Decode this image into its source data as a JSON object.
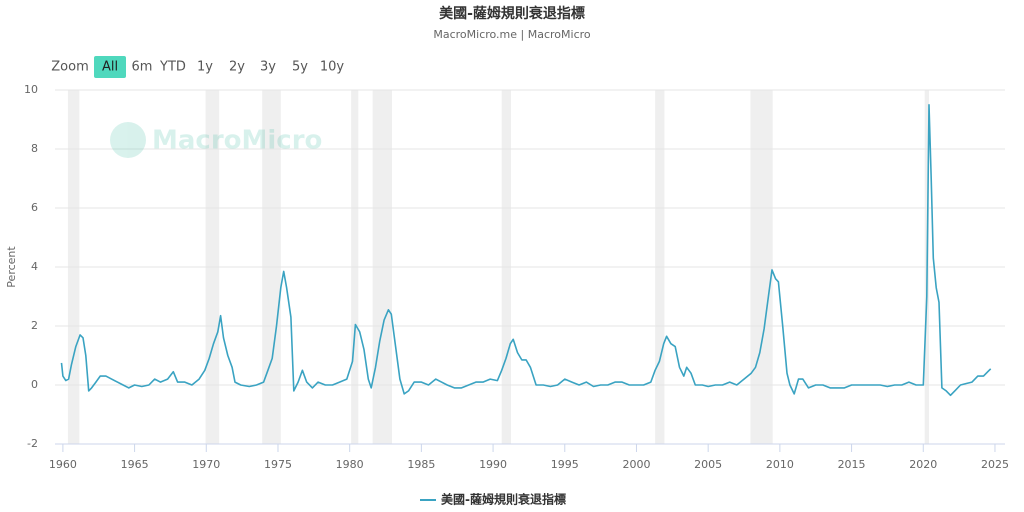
{
  "chart_data": {
    "type": "line",
    "title": "美國-薩姆規則衰退指標",
    "subtitle": "MacroMicro.me | MacroMicro",
    "watermark": "MacroMicro",
    "range_selector": {
      "label": "Zoom",
      "buttons": [
        "All",
        "6m",
        "YTD",
        "1y",
        "2y",
        "3y",
        "5y",
        "10y"
      ],
      "selected": 0
    },
    "y_label": "Percent",
    "xlim": [
      1959.45,
      2025.7
    ],
    "xticks": [
      1960,
      1965,
      1970,
      1975,
      1980,
      1985,
      1990,
      1995,
      2000,
      2005,
      2010,
      2015,
      2020,
      2025
    ],
    "ylim": [
      -2,
      10
    ],
    "yticks": [
      -2,
      0,
      2,
      4,
      6,
      8,
      10
    ],
    "grid": true,
    "recessions": [
      [
        1960.35,
        1961.15
      ],
      [
        1969.95,
        1970.9
      ],
      [
        1973.9,
        1975.2
      ],
      [
        1980.1,
        1980.6
      ],
      [
        1981.6,
        1982.95
      ],
      [
        1990.6,
        1991.25
      ],
      [
        2001.3,
        2001.95
      ],
      [
        2007.95,
        2009.5
      ],
      [
        2020.1,
        2020.4
      ]
    ],
    "x": [
      1959.9,
      1960.0,
      1960.2,
      1960.4,
      1960.6,
      1960.9,
      1961.2,
      1961.4,
      1961.6,
      1961.8,
      1962.0,
      1962.3,
      1962.6,
      1963.0,
      1963.4,
      1963.8,
      1964.2,
      1964.6,
      1965.0,
      1965.5,
      1966.0,
      1966.4,
      1966.8,
      1967.3,
      1967.7,
      1968.0,
      1968.5,
      1969.0,
      1969.5,
      1969.9,
      1970.2,
      1970.5,
      1970.8,
      1971.0,
      1971.2,
      1971.5,
      1971.8,
      1972.0,
      1972.4,
      1973.0,
      1973.5,
      1974.0,
      1974.3,
      1974.6,
      1974.9,
      1975.2,
      1975.4,
      1975.6,
      1975.9,
      1976.1,
      1976.4,
      1976.7,
      1977.0,
      1977.4,
      1977.8,
      1978.3,
      1978.8,
      1979.3,
      1979.8,
      1980.2,
      1980.4,
      1980.7,
      1981.0,
      1981.3,
      1981.5,
      1981.8,
      1982.1,
      1982.4,
      1982.7,
      1982.9,
      1983.2,
      1983.5,
      1983.8,
      1984.1,
      1984.5,
      1985.0,
      1985.5,
      1986.0,
      1986.4,
      1986.8,
      1987.3,
      1987.8,
      1988.3,
      1988.8,
      1989.3,
      1989.8,
      1990.3,
      1990.6,
      1990.9,
      1991.2,
      1991.4,
      1991.7,
      1992.0,
      1992.3,
      1992.6,
      1993.0,
      1993.5,
      1994.0,
      1994.5,
      1995.0,
      1995.5,
      1996.0,
      1996.5,
      1997.0,
      1997.5,
      1998.0,
      1998.5,
      1999.0,
      1999.5,
      2000.0,
      2000.5,
      2001.0,
      2001.3,
      2001.6,
      2001.9,
      2002.1,
      2002.4,
      2002.7,
      2003.0,
      2003.3,
      2003.5,
      2003.8,
      2004.1,
      2004.6,
      2005.0,
      2005.5,
      2006.0,
      2006.5,
      2007.0,
      2007.5,
      2008.0,
      2008.3,
      2008.6,
      2008.9,
      2009.2,
      2009.45,
      2009.7,
      2009.9,
      2010.2,
      2010.5,
      2010.7,
      2011.0,
      2011.3,
      2011.6,
      2012.0,
      2012.5,
      2013.0,
      2013.5,
      2014.0,
      2014.5,
      2015.0,
      2015.5,
      2016.0,
      2016.5,
      2017.0,
      2017.5,
      2018.0,
      2018.5,
      2019.0,
      2019.5,
      2020.0,
      2020.25,
      2020.4,
      2020.55,
      2020.7,
      2020.9,
      2021.1,
      2021.3,
      2021.6,
      2021.9,
      2022.2,
      2022.6,
      2023.0,
      2023.4,
      2023.8,
      2024.2,
      2024.5,
      2024.7
    ],
    "series": [
      {
        "name": "美國-薩姆規則衰退指標",
        "color": "#3aa3c2",
        "values": [
          0.75,
          0.3,
          0.15,
          0.2,
          0.7,
          1.3,
          1.7,
          1.6,
          1.0,
          -0.2,
          -0.1,
          0.1,
          0.3,
          0.3,
          0.2,
          0.1,
          0.0,
          -0.1,
          0.0,
          -0.05,
          0.0,
          0.2,
          0.1,
          0.2,
          0.45,
          0.1,
          0.1,
          0.0,
          0.2,
          0.5,
          0.9,
          1.4,
          1.8,
          2.35,
          1.6,
          1.0,
          0.6,
          0.1,
          0.0,
          -0.05,
          0.0,
          0.1,
          0.5,
          0.9,
          2.0,
          3.3,
          3.85,
          3.3,
          2.3,
          -0.2,
          0.1,
          0.5,
          0.1,
          -0.1,
          0.1,
          0.0,
          0.0,
          0.1,
          0.2,
          0.8,
          2.05,
          1.8,
          1.2,
          0.2,
          -0.1,
          0.6,
          1.5,
          2.2,
          2.55,
          2.4,
          1.3,
          0.2,
          -0.3,
          -0.2,
          0.1,
          0.1,
          0.0,
          0.2,
          0.1,
          0.0,
          -0.1,
          -0.1,
          0.0,
          0.1,
          0.1,
          0.2,
          0.15,
          0.5,
          0.9,
          1.4,
          1.55,
          1.1,
          0.85,
          0.85,
          0.6,
          0.0,
          0.0,
          -0.05,
          0.0,
          0.2,
          0.1,
          0.0,
          0.1,
          -0.05,
          0.0,
          0.0,
          0.1,
          0.1,
          0.0,
          0.0,
          0.0,
          0.1,
          0.5,
          0.8,
          1.4,
          1.65,
          1.4,
          1.3,
          0.6,
          0.3,
          0.6,
          0.4,
          0.0,
          0.0,
          -0.05,
          0.0,
          0.0,
          0.1,
          0.0,
          0.2,
          0.4,
          0.6,
          1.1,
          1.9,
          3.0,
          3.9,
          3.6,
          3.5,
          2.0,
          0.4,
          0.0,
          -0.3,
          0.2,
          0.2,
          -0.1,
          0.0,
          0.0,
          -0.1,
          -0.1,
          -0.1,
          0.0,
          0.0,
          0.0,
          0.0,
          0.0,
          -0.05,
          0.0,
          0.0,
          0.1,
          0.0,
          0.0,
          3.0,
          9.5,
          7.0,
          4.3,
          3.3,
          2.8,
          -0.1,
          -0.2,
          -0.35,
          -0.2,
          0.0,
          0.05,
          0.1,
          0.3,
          0.3,
          0.45,
          0.55
        ]
      }
    ]
  }
}
